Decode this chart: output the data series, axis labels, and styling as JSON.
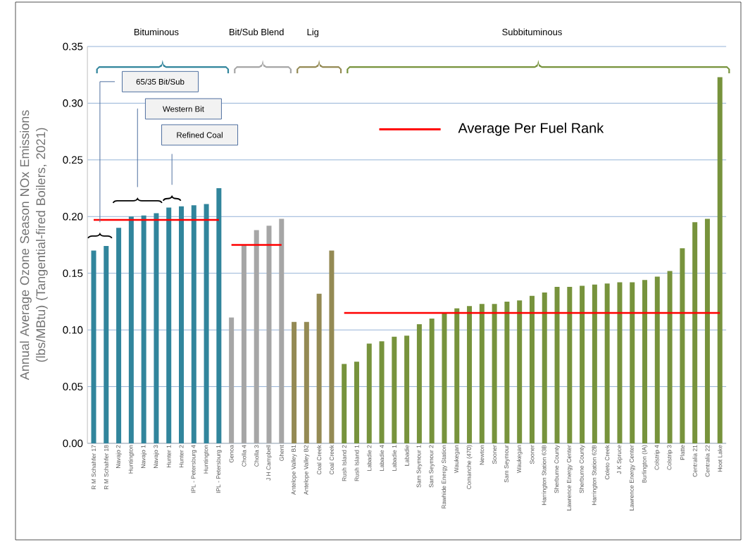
{
  "chart_data": {
    "type": "bar",
    "ylabel": "Annual Average Ozone Season NOx Emissions (lbs/MBtu) (Tangential-fired Boilers, 2021)",
    "categories": [
      "R M Schahfer 17",
      "R M Schahfer 18",
      "Navajo 2",
      "Huntington",
      "Navajo 1",
      "Navajo 3",
      "Hunter 1",
      "Hunter 2",
      "IPL - Petersburg 4",
      "Huntington",
      "IPL - Petersburg 1",
      "Genoa",
      "Cholla 4",
      "Cholla 3",
      "J H Campbell",
      "Ghent",
      "Antelope Valley B1",
      "Antelope Valley B2",
      "Coal Creek",
      "Coal Creek",
      "Rush Island 2",
      "Rush Island 1",
      "Labadie 2",
      "Labadie 4",
      "Labadie 1",
      "Labadie",
      "Sam Seymour 1",
      "Sam Seymour 2",
      "Rawhide Energy Station",
      "Waukegan",
      "Comanche (470)",
      "Newton",
      "Sooner",
      "Sam Seymour",
      "Waukegan",
      "Sooner",
      "Harrington Station 63B",
      "Sherburne County",
      "Lawrence Energy Center",
      "Sherburne County",
      "Harrington Station 62B",
      "Coleto Creek",
      "J K Spruce",
      "Lawrence Energy Center",
      "Burlington (IA)",
      "Colstrip 4",
      "Colstrip 3",
      "Platte",
      "Centralia 21",
      "Centralia 22",
      "Hoot Lake"
    ],
    "series": [
      {
        "values": [
          0.17,
          0.174,
          0.19,
          0.2,
          0.201,
          0.203,
          0.208,
          0.209,
          0.21,
          0.211,
          0.225,
          0.111,
          0.175,
          0.188,
          0.192,
          0.198,
          0.107,
          0.107,
          0.132,
          0.17,
          0.07,
          0.072,
          0.088,
          0.09,
          0.094,
          0.095,
          0.105,
          0.11,
          0.115,
          0.119,
          0.121,
          0.123,
          0.123,
          0.125,
          0.126,
          0.13,
          0.133,
          0.138,
          0.138,
          0.139,
          0.14,
          0.141,
          0.142,
          0.142,
          0.144,
          0.147,
          0.152,
          0.172,
          0.195,
          0.198,
          0.323
        ],
        "colors": [
          "#31859c",
          "#31859c",
          "#31859c",
          "#31859c",
          "#31859c",
          "#31859c",
          "#31859c",
          "#31859c",
          "#31859c",
          "#31859c",
          "#31859c",
          "#a6a6a6",
          "#a6a6a6",
          "#a6a6a6",
          "#a6a6a6",
          "#a6a6a6",
          "#948a54",
          "#948a54",
          "#948a54",
          "#948a54",
          "#77933c",
          "#77933c",
          "#77933c",
          "#77933c",
          "#77933c",
          "#77933c",
          "#77933c",
          "#77933c",
          "#77933c",
          "#77933c",
          "#77933c",
          "#77933c",
          "#77933c",
          "#77933c",
          "#77933c",
          "#77933c",
          "#77933c",
          "#77933c",
          "#77933c",
          "#77933c",
          "#77933c",
          "#77933c",
          "#77933c",
          "#77933c",
          "#77933c",
          "#77933c",
          "#77933c",
          "#77933c",
          "#77933c",
          "#77933c",
          "#77933c"
        ]
      },
      {
        "type": "line",
        "name": "Average Per Fuel Rank",
        "color": "#ff0000",
        "values": [
          0.197,
          0.197,
          0.197,
          0.197,
          0.197,
          0.197,
          0.197,
          0.197,
          0.197,
          0.197,
          0.197,
          null,
          null,
          null,
          null,
          null,
          null,
          null,
          null,
          null,
          null,
          null,
          null,
          null,
          null,
          null,
          null,
          null,
          null,
          null,
          null,
          null,
          null,
          null,
          null,
          null,
          null,
          null,
          null,
          null,
          null,
          null,
          null,
          null,
          null,
          null,
          null,
          null,
          null,
          null,
          null
        ]
      },
      {
        "type": "line",
        "color": "#ff0000",
        "values": [
          null,
          null,
          null,
          null,
          null,
          null,
          null,
          null,
          null,
          null,
          null,
          0.175,
          0.175,
          0.175,
          0.175,
          0.175,
          null,
          null,
          null,
          null,
          null,
          null,
          null,
          null,
          null,
          null,
          null,
          null,
          null,
          null,
          null,
          null,
          null,
          null,
          null,
          null,
          null,
          null,
          null,
          null,
          null,
          null,
          null,
          null,
          null,
          null,
          null,
          null,
          null,
          null,
          null
        ]
      },
      {
        "type": "line",
        "color": "#ff0000",
        "values": [
          null,
          null,
          null,
          null,
          null,
          null,
          null,
          null,
          null,
          null,
          null,
          null,
          null,
          null,
          null,
          null,
          null,
          null,
          null,
          null,
          0.115,
          0.115,
          0.115,
          0.115,
          0.115,
          0.115,
          0.115,
          0.115,
          0.115,
          0.115,
          0.115,
          0.115,
          0.115,
          0.115,
          0.115,
          0.115,
          0.115,
          0.115,
          0.115,
          0.115,
          0.115,
          0.115,
          0.115,
          0.115,
          0.115,
          0.115,
          0.115,
          0.115,
          0.115,
          0.115,
          0.115
        ]
      }
    ],
    "ylim": [
      0,
      0.35
    ],
    "yticks": [
      {
        "value": 0,
        "label": "0.00"
      },
      {
        "value": 0.05,
        "label": "0.05"
      },
      {
        "value": 0.1,
        "label": "0.10"
      },
      {
        "value": 0.15,
        "label": "0.15"
      },
      {
        "value": 0.2,
        "label": "0.20"
      },
      {
        "value": 0.25,
        "label": "0.25"
      },
      {
        "value": 0.3,
        "label": "0.30"
      },
      {
        "value": 0.35,
        "label": "0.35"
      }
    ],
    "grid": "y",
    "legend": "top",
    "annotations": [
      "Bituminous",
      "Bit/Sub Blend",
      "Lig",
      "Subbituminous",
      "65/35 Bit/Sub",
      "Western Bit",
      "Refined Coal"
    ]
  }
}
